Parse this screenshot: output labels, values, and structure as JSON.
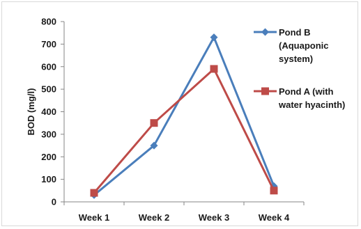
{
  "chart_data": {
    "type": "line",
    "categories": [
      "Week 1",
      "Week 2",
      "Week 3",
      "Week 4"
    ],
    "series": [
      {
        "name": "Pond B (Aquaponic system)",
        "legend_lines": [
          "Pond B",
          "(Aquaponic",
          "system)"
        ],
        "values": [
          30,
          250,
          730,
          70
        ],
        "color": "#4a7ebb",
        "marker": "diamond"
      },
      {
        "name": "Pond A (with water hyacinth)",
        "legend_lines": [
          "Pond A (with",
          "water hyacinth)"
        ],
        "values": [
          40,
          350,
          590,
          50
        ],
        "color": "#be4b48",
        "marker": "square"
      }
    ],
    "title": "",
    "xlabel": "",
    "ylabel": "BOD (mg/l)",
    "ylim": [
      0,
      800
    ],
    "yticks": [
      0,
      100,
      200,
      300,
      400,
      500,
      600,
      700,
      800
    ],
    "grid": false,
    "legend_position": "right"
  }
}
